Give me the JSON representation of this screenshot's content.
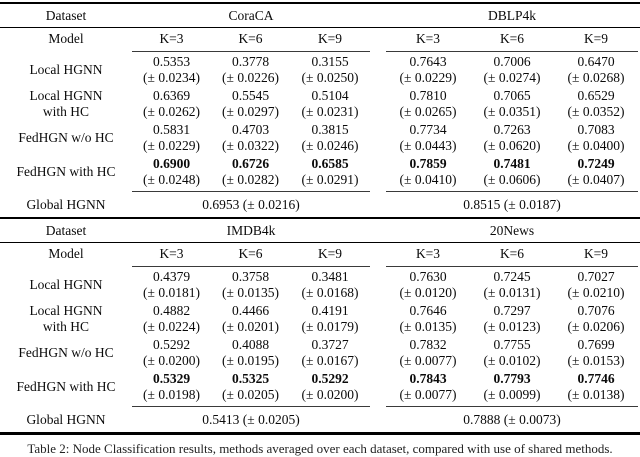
{
  "caption": "Table 2: Node Classification results, methods averaged over each dataset, compared with use of shared methods.",
  "tables": [
    {
      "dataset_header": "Dataset",
      "model_header": "Model",
      "datasets": [
        "CoraCA",
        "DBLP4k"
      ],
      "k_labels": [
        "K=3",
        "K=6",
        "K=9",
        "K=3",
        "K=6",
        "K=9"
      ],
      "rows": [
        {
          "model1": "Local HGNN",
          "model2": "",
          "c": [
            [
              "0.5353",
              "(± 0.0234)"
            ],
            [
              "0.3778",
              "(± 0.0226)"
            ],
            [
              "0.3155",
              "(± 0.0250)"
            ],
            [
              "0.7643",
              "(± 0.0229)"
            ],
            [
              "0.7006",
              "(± 0.0274)"
            ],
            [
              "0.6470",
              "(± 0.0268)"
            ]
          ]
        },
        {
          "model1": "Local HGNN",
          "model2": "with HC",
          "c": [
            [
              "0.6369",
              "(± 0.0262)"
            ],
            [
              "0.5545",
              "(± 0.0297)"
            ],
            [
              "0.5104",
              "(± 0.0231)"
            ],
            [
              "0.7810",
              "(± 0.0265)"
            ],
            [
              "0.7065",
              "(± 0.0351)"
            ],
            [
              "0.6529",
              "(± 0.0352)"
            ]
          ]
        },
        {
          "model1": "FedHGN w/o HC",
          "model2": "",
          "c": [
            [
              "0.5831",
              "(± 0.0229)"
            ],
            [
              "0.4703",
              "(± 0.0322)"
            ],
            [
              "0.3815",
              "(± 0.0246)"
            ],
            [
              "0.7734",
              "(± 0.0443)"
            ],
            [
              "0.7263",
              "(± 0.0620)"
            ],
            [
              "0.7083",
              "(± 0.0400)"
            ]
          ]
        },
        {
          "model1": "FedHGN with HC",
          "model2": "",
          "c": [
            [
              "0.6900",
              "(± 0.0248)"
            ],
            [
              "0.6726",
              "(± 0.0282)"
            ],
            [
              "0.6585",
              "(± 0.0291)"
            ],
            [
              "0.7859",
              "(± 0.0410)"
            ],
            [
              "0.7481",
              "(± 0.0606)"
            ],
            [
              "0.7249",
              "(± 0.0407)"
            ]
          ]
        }
      ],
      "global": {
        "model": "Global HGNN",
        "vals": [
          "0.6953 (± 0.0216)",
          "0.8515 (± 0.0187)"
        ]
      }
    },
    {
      "dataset_header": "Dataset",
      "model_header": "Model",
      "datasets": [
        "IMDB4k",
        "20News"
      ],
      "k_labels": [
        "K=3",
        "K=6",
        "K=9",
        "K=3",
        "K=6",
        "K=9"
      ],
      "rows": [
        {
          "model1": "Local HGNN",
          "model2": "",
          "c": [
            [
              "0.4379",
              "(± 0.0181)"
            ],
            [
              "0.3758",
              "(± 0.0135)"
            ],
            [
              "0.3481",
              "(± 0.0168)"
            ],
            [
              "0.7630",
              "(± 0.0120)"
            ],
            [
              "0.7245",
              "(± 0.0131)"
            ],
            [
              "0.7027",
              "(± 0.0210)"
            ]
          ]
        },
        {
          "model1": "Local HGNN",
          "model2": "with HC",
          "c": [
            [
              "0.4882",
              "(± 0.0224)"
            ],
            [
              "0.4466",
              "(± 0.0201)"
            ],
            [
              "0.4191",
              "(± 0.0179)"
            ],
            [
              "0.7646",
              "(± 0.0135)"
            ],
            [
              "0.7297",
              "(± 0.0123)"
            ],
            [
              "0.7076",
              "(± 0.0206)"
            ]
          ]
        },
        {
          "model1": "FedHGN w/o HC",
          "model2": "",
          "c": [
            [
              "0.5292",
              "(± 0.0200)"
            ],
            [
              "0.4088",
              "(± 0.0195)"
            ],
            [
              "0.3727",
              "(± 0.0167)"
            ],
            [
              "0.7832",
              "(± 0.0077)"
            ],
            [
              "0.7755",
              "(± 0.0102)"
            ],
            [
              "0.7699",
              "(± 0.0153)"
            ]
          ]
        },
        {
          "model1": "FedHGN with HC",
          "model2": "",
          "c": [
            [
              "0.5329",
              "(± 0.0198)"
            ],
            [
              "0.5325",
              "(± 0.0205)"
            ],
            [
              "0.5292",
              "(± 0.0200)"
            ],
            [
              "0.7843",
              "(± 0.0077)"
            ],
            [
              "0.7793",
              "(± 0.0099)"
            ],
            [
              "0.7746",
              "(± 0.0138)"
            ]
          ]
        }
      ],
      "global": {
        "model": "Global HGNN",
        "vals": [
          "0.5413 (± 0.0205)",
          "0.7888 (± 0.0073)"
        ]
      }
    }
  ]
}
